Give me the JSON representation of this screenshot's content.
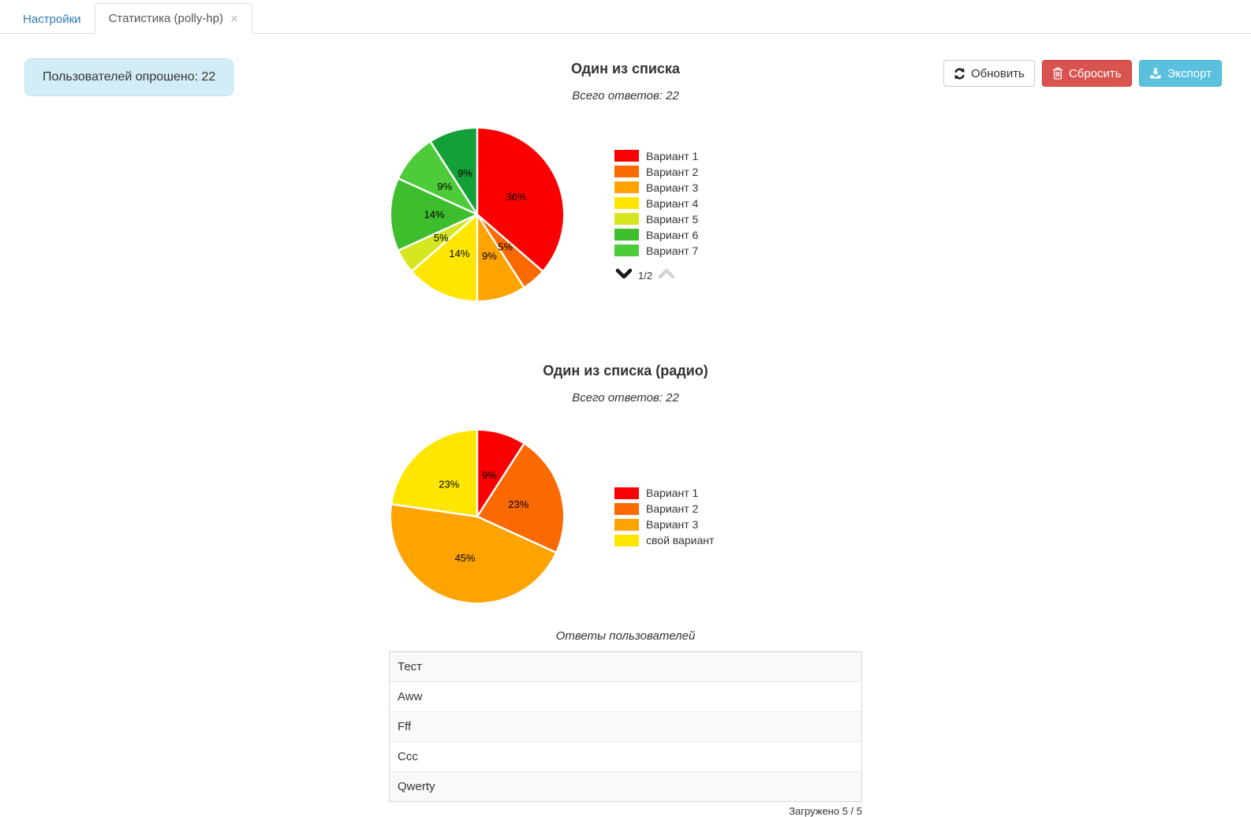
{
  "tabs": {
    "settings": {
      "label": "Настройки"
    },
    "statistics": {
      "label": "Статистика (polly-hp)",
      "close": "×",
      "active": true
    }
  },
  "badge": {
    "text": "Пользователей опрошено: 22"
  },
  "toolbar": {
    "refresh_label": "Обновить",
    "reset_label": "Сбросить",
    "export_label": "Экспорт"
  },
  "colors": {
    "link_blue": "#337ab7",
    "badge_bg": "#d3edf8",
    "danger_red": "#d9534f",
    "info_blue": "#5bc0de",
    "table_stripe": "#f9f9f9",
    "border_gray": "#dddddd"
  },
  "chart_data": [
    {
      "type": "pie",
      "title": "Один из списка",
      "subtitle": "Всего ответов: 22",
      "total_answers": 22,
      "slices": [
        {
          "count": 8,
          "percent": "36%",
          "color": "#fb0000"
        },
        {
          "count": 1,
          "percent": "5%",
          "color": "#fa6a00"
        },
        {
          "count": 2,
          "percent": "9%",
          "color": "#ffa300"
        },
        {
          "count": 3,
          "percent": "14%",
          "color": "#ffe600"
        },
        {
          "count": 1,
          "percent": "5%",
          "color": "#d6e620"
        },
        {
          "count": 3,
          "percent": "14%",
          "color": "#3ebe2c"
        },
        {
          "count": 2,
          "percent": "9%",
          "color": "#4ecb38"
        },
        {
          "count": 2,
          "percent": "9%",
          "color": "#14a038"
        }
      ],
      "legend": [
        {
          "label": "Вариант 1",
          "color": "#fb0000"
        },
        {
          "label": "Вариант 2",
          "color": "#fa6a00"
        },
        {
          "label": "Вариант 3",
          "color": "#ffa300"
        },
        {
          "label": "Вариант 4",
          "color": "#ffe600"
        },
        {
          "label": "Вариант 5",
          "color": "#d6e620"
        },
        {
          "label": "Вариант 6",
          "color": "#3ebe2c"
        },
        {
          "label": "Вариант 7",
          "color": "#4ecb38"
        }
      ],
      "pager": {
        "page": "1/2"
      }
    },
    {
      "type": "pie",
      "title": "Один из списка (радио)",
      "subtitle": "Всего ответов: 22",
      "total_answers": 22,
      "slices": [
        {
          "count": 2,
          "percent": "9%",
          "color": "#fb0000"
        },
        {
          "count": 5,
          "percent": "23%",
          "color": "#fa6a00"
        },
        {
          "count": 10,
          "percent": "45%",
          "color": "#ffa300"
        },
        {
          "count": 5,
          "percent": "23%",
          "color": "#ffe600"
        }
      ],
      "legend": [
        {
          "label": "Вариант 1",
          "color": "#fb0000"
        },
        {
          "label": "Вариант 2",
          "color": "#fa6a00"
        },
        {
          "label": "Вариант 3",
          "color": "#ffa300"
        },
        {
          "label": "свой вариант",
          "color": "#ffe600"
        }
      ]
    }
  ],
  "answers": {
    "caption": "Ответы пользователей",
    "rows": [
      "Тест",
      "Aww",
      "Fff",
      "Ccc",
      "Qwerty"
    ],
    "footer": "Загружено 5 / 5"
  }
}
